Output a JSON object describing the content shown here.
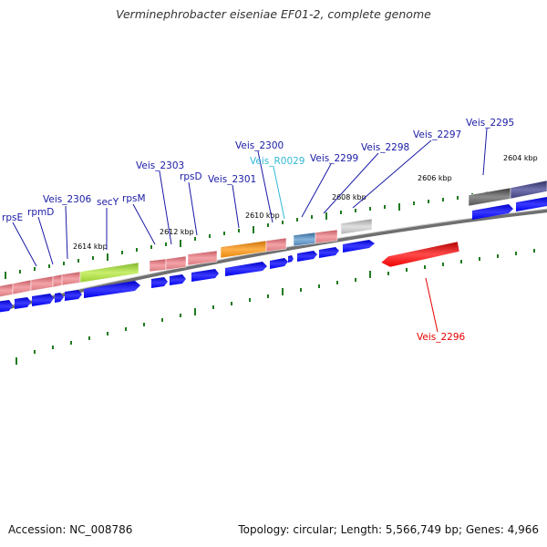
{
  "title": "Verminephrobacter eiseniae EF01-2, complete genome",
  "footer": {
    "accession": "Accession: NC_008786",
    "stats": "Topology: circular; Length: 5,566,749 bp; Genes: 4,966"
  },
  "colors": {
    "forward_cds": "#0000ee",
    "label_default": "#1a1aa6",
    "label_rna": "#33b8d6",
    "label_highlight": "#e60000",
    "tick": "#1f7a1f",
    "backbone": "#8a8a8a"
  },
  "kbp_labels": [
    "2604 kbp",
    "2606 kbp",
    "2608 kbp",
    "2610 kbp",
    "2612 kbp",
    "2614 kbp"
  ],
  "gene_labels": [
    {
      "name": "rpsE",
      "kind": "default"
    },
    {
      "name": "rpmD",
      "kind": "default"
    },
    {
      "name": "Veis_2306",
      "kind": "default"
    },
    {
      "name": "secY",
      "kind": "default"
    },
    {
      "name": "rpsM",
      "kind": "default"
    },
    {
      "name": "Veis_2303",
      "kind": "default"
    },
    {
      "name": "rpsD",
      "kind": "default"
    },
    {
      "name": "Veis_2301",
      "kind": "default"
    },
    {
      "name": "Veis_2300",
      "kind": "default"
    },
    {
      "name": "Veis_R0029",
      "kind": "rna"
    },
    {
      "name": "Veis_2299",
      "kind": "default"
    },
    {
      "name": "Veis_2298",
      "kind": "default"
    },
    {
      "name": "Veis_2297",
      "kind": "default"
    },
    {
      "name": "Veis_2295",
      "kind": "default"
    },
    {
      "name": "Veis_2296",
      "kind": "highlight"
    }
  ],
  "feature_colors": {
    "pink": "#d97a80",
    "green": "#9acd32",
    "orange": "#e8870c",
    "steel": "#4f82b4",
    "gray": "#b5b5b5",
    "dark_gray": "#555555",
    "purple": "#3f3f7a",
    "red": "#ee0000"
  }
}
